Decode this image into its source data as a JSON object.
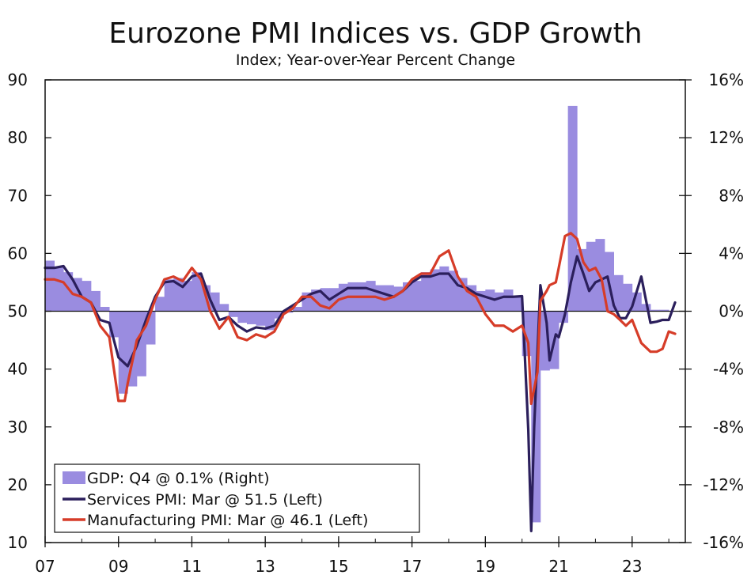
{
  "chart_data": {
    "type": "bar+line",
    "title": "Eurozone PMI Indices vs. GDP Growth",
    "subtitle": "Index; Year-over-Year Percent Change",
    "x_range": [
      2007.0,
      2024.45
    ],
    "x_ticks": [
      {
        "value": 2007,
        "label": "07"
      },
      {
        "value": 2009,
        "label": "09"
      },
      {
        "value": 2011,
        "label": "11"
      },
      {
        "value": 2013,
        "label": "13"
      },
      {
        "value": 2015,
        "label": "15"
      },
      {
        "value": 2017,
        "label": "17"
      },
      {
        "value": 2019,
        "label": "19"
      },
      {
        "value": 2021,
        "label": "21"
      },
      {
        "value": 2023,
        "label": "23"
      }
    ],
    "left_axis": {
      "ylim": [
        10,
        90
      ],
      "ticks": [
        "10",
        "20",
        "30",
        "40",
        "50",
        "60",
        "70",
        "80",
        "90"
      ]
    },
    "right_axis": {
      "ylim": [
        -16,
        16
      ],
      "ticks": [
        "-16%",
        "-12%",
        "-8%",
        "-4%",
        "0%",
        "4%",
        "8%",
        "12%",
        "16%"
      ]
    },
    "reference_line": {
      "axis": "left",
      "value": 50
    },
    "legend": {
      "placement": "bottom-left",
      "entries": [
        {
          "label": "GDP: Q4 @ 0.1% (Right)",
          "key": "gdp"
        },
        {
          "label": "Services PMI: Mar @ 51.5 (Left)",
          "key": "services"
        },
        {
          "label": "Manufacturing PMI: Mar @ 46.1 (Left)",
          "key": "manufacturing"
        }
      ]
    },
    "colors": {
      "gdp": "#9a8ce0",
      "services": "#2b1f5c",
      "manufacturing": "#d63c28",
      "axis": "#111111"
    },
    "series": [
      {
        "key": "gdp",
        "name": "GDP",
        "kind": "bar",
        "axis": "right",
        "x": [
          2007.0,
          2007.25,
          2007.5,
          2007.75,
          2008.0,
          2008.25,
          2008.5,
          2008.75,
          2009.0,
          2009.25,
          2009.5,
          2009.75,
          2010.0,
          2010.25,
          2010.5,
          2010.75,
          2011.0,
          2011.25,
          2011.5,
          2011.75,
          2012.0,
          2012.25,
          2012.5,
          2012.75,
          2013.0,
          2013.25,
          2013.5,
          2013.75,
          2014.0,
          2014.25,
          2014.5,
          2014.75,
          2015.0,
          2015.25,
          2015.5,
          2015.75,
          2016.0,
          2016.25,
          2016.5,
          2016.75,
          2017.0,
          2017.25,
          2017.5,
          2017.75,
          2018.0,
          2018.25,
          2018.5,
          2018.75,
          2019.0,
          2019.25,
          2019.5,
          2019.75,
          2020.0,
          2020.25,
          2020.5,
          2020.75,
          2021.0,
          2021.25,
          2021.5,
          2021.75,
          2022.0,
          2022.25,
          2022.5,
          2022.75,
          2023.0,
          2023.25,
          2023.5,
          2023.75
        ],
        "values": [
          3.5,
          3.1,
          2.7,
          2.3,
          2.1,
          1.4,
          0.3,
          -1.8,
          -5.7,
          -5.2,
          -4.5,
          -2.3,
          1.0,
          2.2,
          2.3,
          2.1,
          2.7,
          1.8,
          1.3,
          0.5,
          -0.4,
          -0.8,
          -0.9,
          -1.0,
          -1.3,
          -0.5,
          -0.1,
          0.3,
          1.3,
          1.5,
          1.6,
          1.6,
          1.9,
          2.0,
          2.0,
          2.1,
          1.8,
          1.8,
          1.7,
          2.0,
          2.1,
          2.7,
          2.9,
          3.1,
          2.8,
          2.3,
          1.8,
          1.4,
          1.5,
          1.3,
          1.5,
          1.0,
          -3.1,
          -14.6,
          -4.1,
          -4.0,
          -0.8,
          14.2,
          4.3,
          4.8,
          5.0,
          4.1,
          2.5,
          1.9,
          1.3,
          0.5,
          0.1,
          0.1
        ]
      },
      {
        "key": "services",
        "name": "Services PMI",
        "kind": "line",
        "axis": "left",
        "x": [
          2007.0,
          2007.25,
          2007.5,
          2007.75,
          2008.0,
          2008.25,
          2008.5,
          2008.75,
          2009.0,
          2009.25,
          2009.5,
          2009.75,
          2010.0,
          2010.25,
          2010.5,
          2010.75,
          2011.0,
          2011.25,
          2011.5,
          2011.75,
          2012.0,
          2012.25,
          2012.5,
          2012.75,
          2013.0,
          2013.25,
          2013.5,
          2013.75,
          2014.0,
          2014.25,
          2014.5,
          2014.75,
          2015.0,
          2015.25,
          2015.5,
          2015.75,
          2016.0,
          2016.25,
          2016.5,
          2016.75,
          2017.0,
          2017.25,
          2017.5,
          2017.75,
          2018.0,
          2018.25,
          2018.5,
          2018.75,
          2019.0,
          2019.25,
          2019.5,
          2019.75,
          2020.0,
          2020.17,
          2020.25,
          2020.33,
          2020.5,
          2020.67,
          2020.75,
          2020.92,
          2021.0,
          2021.17,
          2021.33,
          2021.5,
          2021.67,
          2021.83,
          2022.0,
          2022.17,
          2022.33,
          2022.5,
          2022.67,
          2022.83,
          2023.0,
          2023.25,
          2023.5,
          2023.67,
          2023.83,
          2024.0,
          2024.17
        ],
        "values": [
          57.5,
          57.5,
          57.8,
          55.5,
          52.5,
          51.5,
          48.5,
          48.0,
          42.0,
          40.5,
          44.0,
          48.5,
          52.5,
          55.0,
          55.2,
          54.2,
          56.0,
          56.5,
          52.0,
          48.5,
          49.0,
          47.5,
          46.5,
          47.2,
          47.0,
          47.5,
          50.0,
          51.0,
          52.0,
          53.0,
          53.5,
          52.0,
          53.0,
          54.0,
          54.0,
          54.0,
          53.5,
          53.0,
          52.5,
          53.5,
          55.0,
          56.0,
          56.0,
          56.5,
          56.5,
          54.5,
          54.0,
          53.0,
          52.5,
          52.0,
          52.5,
          52.5,
          52.6,
          29.5,
          12.0,
          30.0,
          54.5,
          48.0,
          41.5,
          46.0,
          45.5,
          49.5,
          55.0,
          59.5,
          56.5,
          53.5,
          55.0,
          55.5,
          56.0,
          51.0,
          48.8,
          48.8,
          50.8,
          56.0,
          48.0,
          48.2,
          48.5,
          48.5,
          51.5
        ]
      },
      {
        "key": "manufacturing",
        "name": "Manufacturing PMI",
        "kind": "line",
        "axis": "left",
        "x": [
          2007.0,
          2007.25,
          2007.5,
          2007.75,
          2008.0,
          2008.25,
          2008.5,
          2008.75,
          2009.0,
          2009.17,
          2009.25,
          2009.5,
          2009.75,
          2010.0,
          2010.25,
          2010.5,
          2010.75,
          2011.0,
          2011.25,
          2011.5,
          2011.75,
          2012.0,
          2012.25,
          2012.5,
          2012.75,
          2013.0,
          2013.25,
          2013.5,
          2013.75,
          2014.0,
          2014.25,
          2014.5,
          2014.75,
          2015.0,
          2015.25,
          2015.5,
          2015.75,
          2016.0,
          2016.25,
          2016.5,
          2016.75,
          2017.0,
          2017.25,
          2017.5,
          2017.75,
          2018.0,
          2018.25,
          2018.5,
          2018.75,
          2019.0,
          2019.25,
          2019.5,
          2019.75,
          2020.0,
          2020.17,
          2020.25,
          2020.42,
          2020.5,
          2020.67,
          2020.75,
          2020.92,
          2021.0,
          2021.17,
          2021.33,
          2021.5,
          2021.67,
          2021.83,
          2022.0,
          2022.17,
          2022.33,
          2022.5,
          2022.67,
          2022.83,
          2023.0,
          2023.25,
          2023.5,
          2023.67,
          2023.83,
          2024.0,
          2024.17
        ],
        "values": [
          55.5,
          55.5,
          55.0,
          53.0,
          52.5,
          51.5,
          47.5,
          45.5,
          34.5,
          34.5,
          37.5,
          45.0,
          47.5,
          52.0,
          55.5,
          56.0,
          55.2,
          57.5,
          55.5,
          50.0,
          47.0,
          49.0,
          45.5,
          45.0,
          46.0,
          45.5,
          46.5,
          49.5,
          50.5,
          52.5,
          52.5,
          51.0,
          50.5,
          52.0,
          52.5,
          52.5,
          52.5,
          52.5,
          52.0,
          52.5,
          53.5,
          55.5,
          56.5,
          56.5,
          59.5,
          60.5,
          56.0,
          53.5,
          52.5,
          49.5,
          47.5,
          47.5,
          46.5,
          47.5,
          44.5,
          34.0,
          39.5,
          51.8,
          53.5,
          54.5,
          55.0,
          57.5,
          63.0,
          63.5,
          62.5,
          58.5,
          57.0,
          57.5,
          55.5,
          50.0,
          49.5,
          48.5,
          47.5,
          48.5,
          44.5,
          43.0,
          43.0,
          43.5,
          46.5,
          46.1
        ]
      }
    ]
  }
}
